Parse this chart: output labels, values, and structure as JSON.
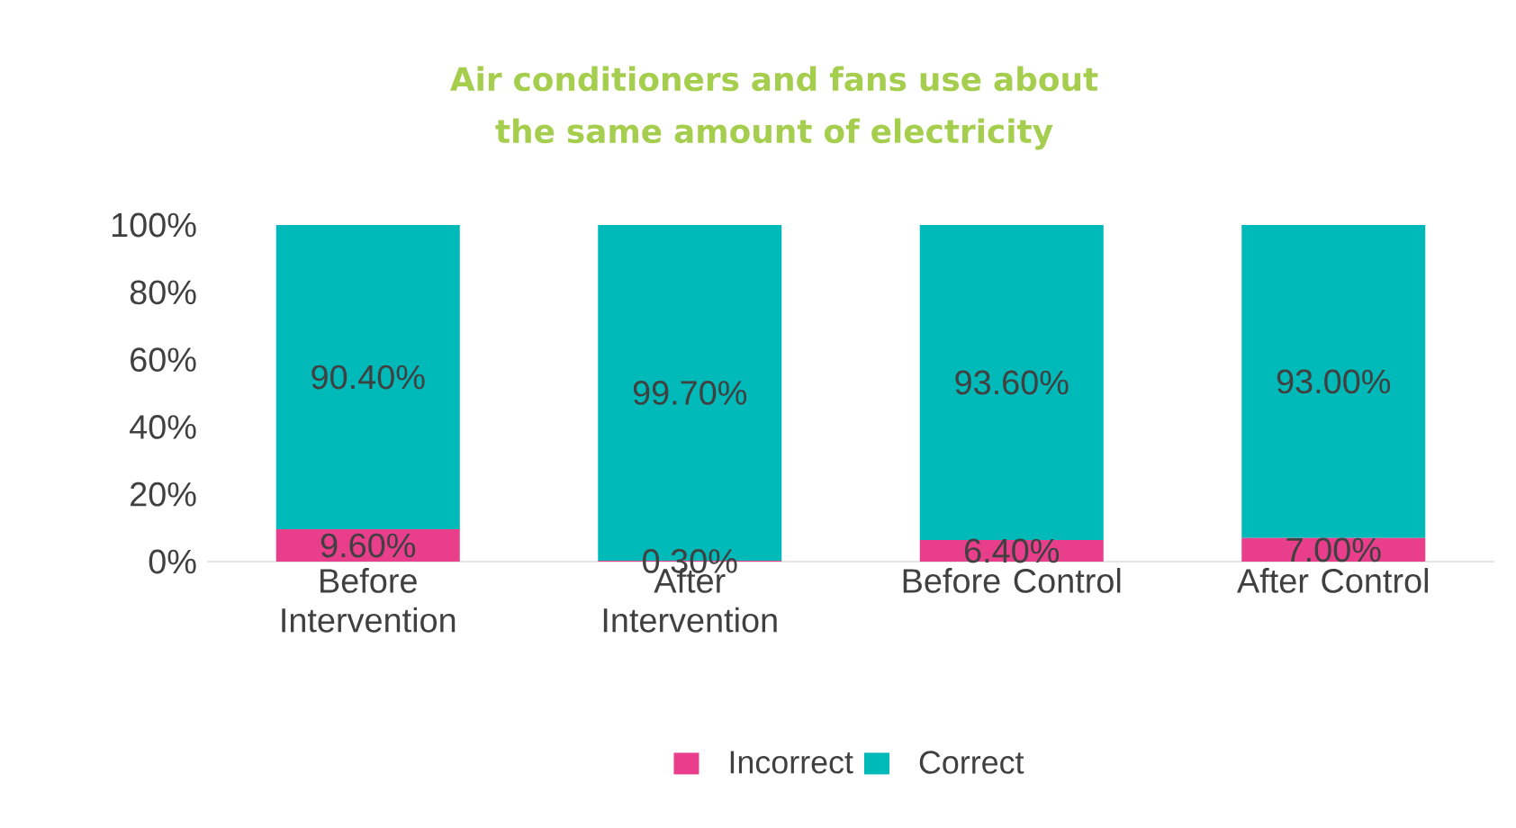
{
  "chart_data": {
    "type": "bar",
    "stacked": true,
    "title": "Air conditioners and fans use about the same amount of electricity",
    "categories": [
      "Before Intervention",
      "After Intervention",
      "Before Control",
      "After Control"
    ],
    "series": [
      {
        "name": "Incorrect",
        "color": "#e83e8c",
        "values": [
          9.6,
          0.3,
          6.4,
          7.0
        ],
        "value_labels": [
          "9.60%",
          "0.30%",
          "6.40%",
          "7.00%"
        ]
      },
      {
        "name": "Correct",
        "color": "#00b9b9",
        "values": [
          90.4,
          99.7,
          93.6,
          93.0
        ],
        "value_labels": [
          "90.40%",
          "99.70%",
          "93.60%",
          "93.00%"
        ]
      }
    ],
    "ylim": [
      0,
      100
    ],
    "yticks": [
      {
        "value": 0,
        "label": "0%"
      },
      {
        "value": 20,
        "label": "20%"
      },
      {
        "value": 40,
        "label": "40%"
      },
      {
        "value": 60,
        "label": "60%"
      },
      {
        "value": 80,
        "label": "80%"
      },
      {
        "value": 100,
        "label": "100%"
      }
    ],
    "legend": "bottom"
  }
}
